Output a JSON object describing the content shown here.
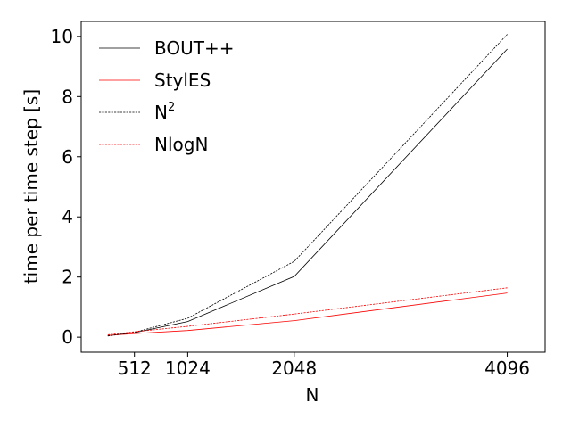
{
  "chart_data": {
    "type": "line",
    "title": "",
    "xlabel": "N",
    "ylabel": "time per time step [s]",
    "x_ticks": [
      512,
      1024,
      2048,
      4096
    ],
    "x_tick_labels": [
      "512",
      "1024",
      "2048",
      "4096"
    ],
    "y_ticks": [
      0,
      2,
      4,
      6,
      8,
      10
    ],
    "y_tick_labels": [
      "0",
      "2",
      "4",
      "6",
      "8",
      "10"
    ],
    "xlim": [
      0,
      4460
    ],
    "ylim": [
      -0.5,
      10.5
    ],
    "grid": false,
    "legend_position": "top-left",
    "series": [
      {
        "name": "BOUT++",
        "name_sup": "",
        "color": "#000000",
        "dash": "solid",
        "x": [
          256,
          512,
          1024,
          2048,
          4096
        ],
        "y": [
          0.05,
          0.15,
          0.52,
          2.02,
          9.58
        ]
      },
      {
        "name": "StylES",
        "name_sup": "",
        "color": "#ff0000",
        "dash": "solid",
        "x": [
          256,
          512,
          1024,
          2048,
          4096
        ],
        "y": [
          0.06,
          0.12,
          0.22,
          0.55,
          1.47
        ]
      },
      {
        "name": "N",
        "name_sup": "2",
        "color": "#000000",
        "dash": "dashed",
        "x": [
          256,
          512,
          1024,
          2048,
          4096
        ],
        "y": [
          0.04,
          0.16,
          0.63,
          2.52,
          10.07
        ]
      },
      {
        "name": "NlogN",
        "name_sup": "",
        "color": "#ff0000",
        "dash": "dashed",
        "x": [
          256,
          512,
          1024,
          2048,
          4096
        ],
        "y": [
          0.08,
          0.18,
          0.36,
          0.77,
          1.64
        ]
      }
    ]
  }
}
